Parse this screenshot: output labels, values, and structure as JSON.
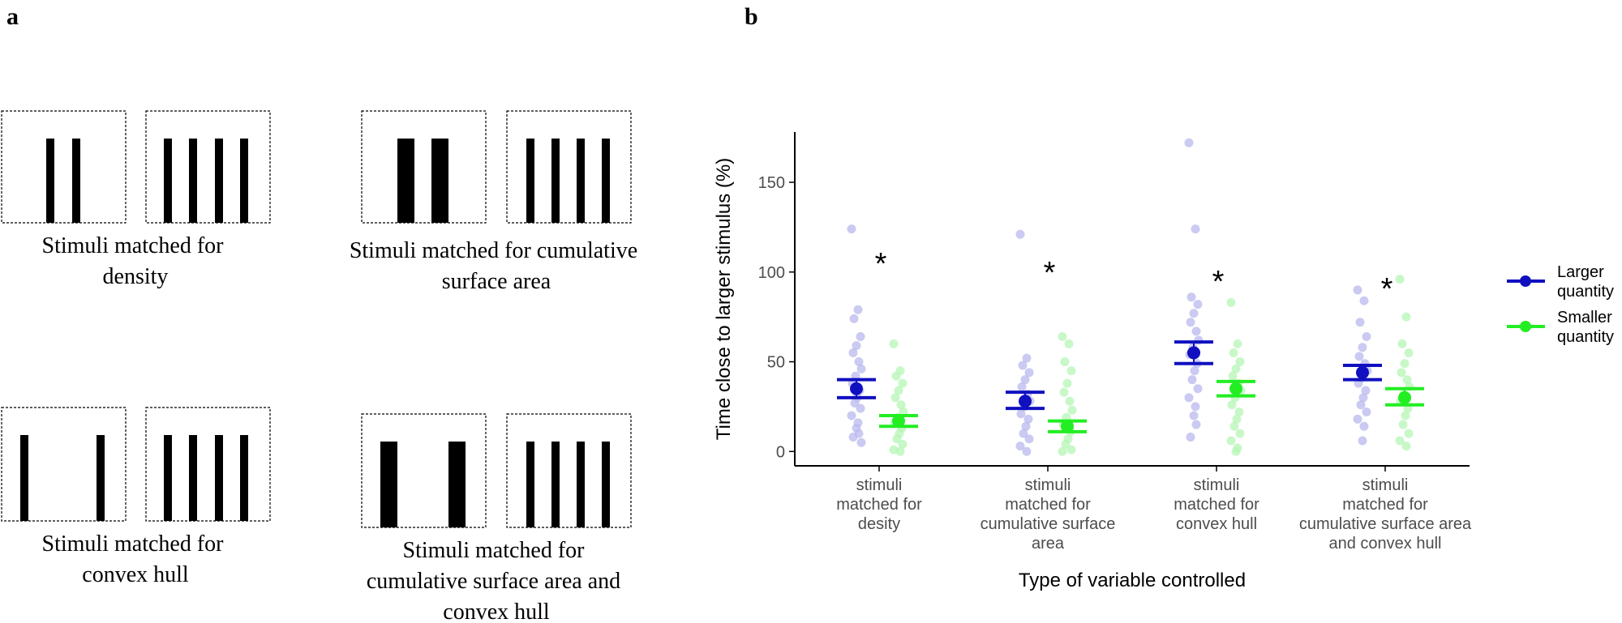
{
  "panel_a": {
    "label": "a",
    "captions": [
      [
        "Stimuli matched for",
        "density"
      ],
      [
        "Stimuli matched for cumulative",
        "surface area"
      ],
      [
        "Stimuli matched for",
        "convex hull"
      ],
      [
        "Stimuli matched for",
        "cumulative surface area and",
        "convex hull"
      ]
    ]
  },
  "panel_b": {
    "label": "b"
  },
  "colors": {
    "larger": "#1010c0",
    "smaller": "#22ee22",
    "larger_light": "#b8b8ee",
    "smaller_light": "#b6f5b6",
    "axis": "#000000",
    "tick_text": "#4d4d4d"
  },
  "chart_data": {
    "type": "scatter",
    "ylabel": "Time close to larger stimulus (%)",
    "xlabel": "Type of variable controlled",
    "ylim": [
      -8,
      178
    ],
    "yticks": [
      0,
      50,
      100,
      150
    ],
    "categories": [
      [
        "stimuli",
        "matched for",
        "desity"
      ],
      [
        "stimuli",
        "matched for",
        "cumulative surface",
        "area"
      ],
      [
        "stimuli",
        "matched for",
        "convex hull"
      ],
      [
        "stimuli",
        "matched for",
        "cumulative surface area",
        "and convex hull"
      ]
    ],
    "legend": [
      [
        "Larger",
        "quantity"
      ],
      [
        "Smaller",
        "quantity"
      ]
    ],
    "series": [
      {
        "name": "Larger quantity",
        "means": [
          35,
          28,
          55,
          44
        ],
        "ci_low": [
          30,
          24,
          49,
          40
        ],
        "ci_high": [
          40,
          33,
          61,
          48
        ],
        "points": [
          [
            124,
            79,
            74,
            64,
            59,
            55,
            50,
            46,
            42,
            38,
            34,
            30,
            27,
            24,
            20,
            16,
            13,
            10,
            8,
            5
          ],
          [
            121,
            52,
            48,
            44,
            40,
            36,
            32,
            28,
            25,
            21,
            18,
            14,
            10,
            7,
            3,
            0
          ],
          [
            172,
            124,
            86,
            82,
            77,
            72,
            67,
            62,
            58,
            54,
            49,
            45,
            40,
            35,
            30,
            25,
            20,
            15,
            8
          ],
          [
            90,
            84,
            72,
            64,
            58,
            53,
            49,
            45,
            41,
            38,
            34,
            30,
            26,
            22,
            18,
            14,
            6
          ]
        ]
      },
      {
        "name": "Smaller quantity",
        "means": [
          17,
          14,
          35,
          30
        ],
        "ci_low": [
          14,
          11,
          31,
          26
        ],
        "ci_high": [
          20,
          17,
          39,
          35
        ],
        "points": [
          [
            60,
            45,
            42,
            38,
            34,
            30,
            26,
            22,
            19,
            16,
            13,
            10,
            7,
            4,
            1,
            0
          ],
          [
            64,
            60,
            50,
            45,
            38,
            33,
            28,
            23,
            19,
            15,
            11,
            7,
            4,
            1,
            0
          ],
          [
            83,
            60,
            55,
            50,
            46,
            42,
            38,
            34,
            30,
            26,
            22,
            18,
            14,
            10,
            6,
            2,
            0
          ],
          [
            96,
            75,
            60,
            55,
            49,
            44,
            40,
            36,
            32,
            28,
            24,
            20,
            15,
            10,
            6,
            3
          ]
        ]
      }
    ],
    "annotations": [
      "*",
      "*",
      "*",
      "*"
    ],
    "annotation_y": [
      109,
      104,
      99,
      95
    ]
  }
}
